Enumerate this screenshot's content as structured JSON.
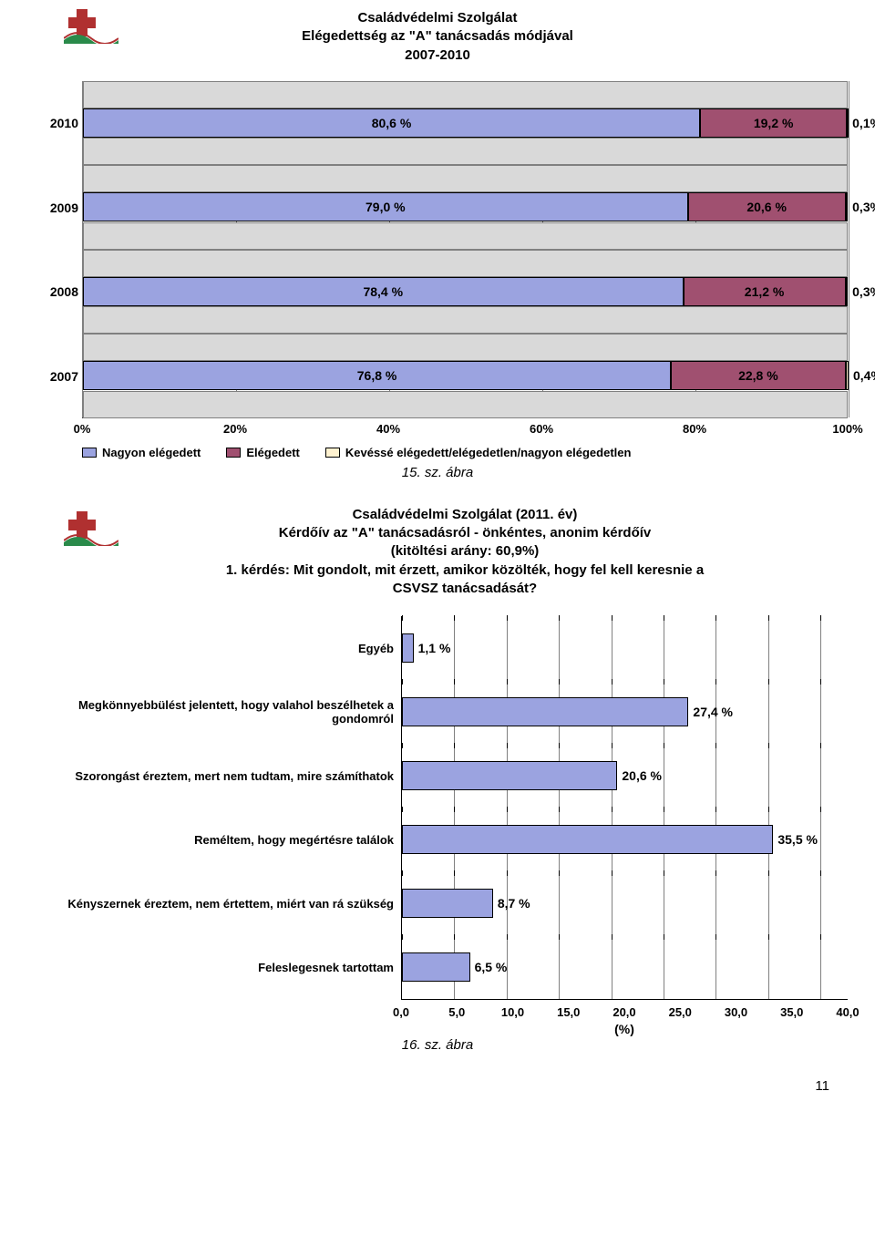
{
  "chart1": {
    "type": "stacked-bar-horizontal",
    "title_lines": [
      "Családvédelmi Szolgálat",
      "Elégedettség az \"A\" tanácsadás módjával",
      "2007-2010"
    ],
    "x_ticks": [
      "0%",
      "20%",
      "40%",
      "60%",
      "80%",
      "100%"
    ],
    "x_tick_positions_pct": [
      0,
      20,
      40,
      60,
      80,
      100
    ],
    "row_bg_color": "#d9d9d9",
    "grid_color": "#808080",
    "categories": [
      "2010",
      "2009",
      "2008",
      "2007"
    ],
    "series": [
      {
        "name": "Nagyon elégedett",
        "color": "#9ba3e0"
      },
      {
        "name": "Elégedett",
        "color": "#a05070"
      },
      {
        "name": "Kevéssé elégedett/elégedetlen/nagyon elégedetlen",
        "color": "#fff2d0"
      }
    ],
    "rows": [
      {
        "year": "2010",
        "values": [
          80.6,
          19.2,
          0.1
        ],
        "labels": [
          "80,6 %",
          "19,2 %",
          "0,1%"
        ]
      },
      {
        "year": "2009",
        "values": [
          79.0,
          20.6,
          0.3
        ],
        "labels": [
          "79,0 %",
          "20,6 %",
          "0,3%"
        ]
      },
      {
        "year": "2008",
        "values": [
          78.4,
          21.2,
          0.3
        ],
        "labels": [
          "78,4 %",
          "21,2 %",
          "0,3%"
        ]
      },
      {
        "year": "2007",
        "values": [
          76.8,
          22.8,
          0.4
        ],
        "labels": [
          "76,8 %",
          "22,8 %",
          "0,4%"
        ]
      }
    ],
    "caption": "15. sz. ábra"
  },
  "chart2": {
    "type": "bar-horizontal",
    "title_lines": [
      "Családvédelmi Szolgálat (2011. év)",
      "Kérdőív az \"A\" tanácsadásról  - önkéntes, anonim kérdőív",
      "(kitöltési arány: 60,9%)",
      "1. kérdés: Mit gondolt, mit érzett, amikor közölték, hogy fel kell keresnie a",
      "CSVSZ tanácsadását?"
    ],
    "bar_color": "#9ba3e0",
    "grid_color": "#808080",
    "x_label": "(%)",
    "x_ticks": [
      "0,0",
      "5,0",
      "10,0",
      "15,0",
      "20,0",
      "25,0",
      "30,0",
      "35,0",
      "40,0"
    ],
    "x_tick_positions": [
      0,
      5,
      10,
      15,
      20,
      25,
      30,
      35,
      40
    ],
    "x_max": 40,
    "rows": [
      {
        "label": "Egyéb",
        "value": 1.1,
        "value_label": "1,1 %"
      },
      {
        "label": "Megkönnyebbülést jelentett, hogy valahol beszélhetek a gondomról",
        "value": 27.4,
        "value_label": "27,4 %"
      },
      {
        "label": "Szorongást éreztem, mert nem tudtam, mire számíthatok",
        "value": 20.6,
        "value_label": "20,6 %"
      },
      {
        "label": "Reméltem, hogy megértésre találok",
        "value": 35.5,
        "value_label": "35,5 %"
      },
      {
        "label": "Kényszernek éreztem, nem értettem, miért van rá szükség",
        "value": 8.7,
        "value_label": "8,7 %"
      },
      {
        "label": "Feleslegesnek tartottam",
        "value": 6.5,
        "value_label": "6,5 %"
      }
    ],
    "caption": "16. sz. ábra"
  },
  "logo_colors": {
    "red": "#b03030",
    "green": "#2a8a4a",
    "white": "#ffffff"
  },
  "page_number": "11"
}
